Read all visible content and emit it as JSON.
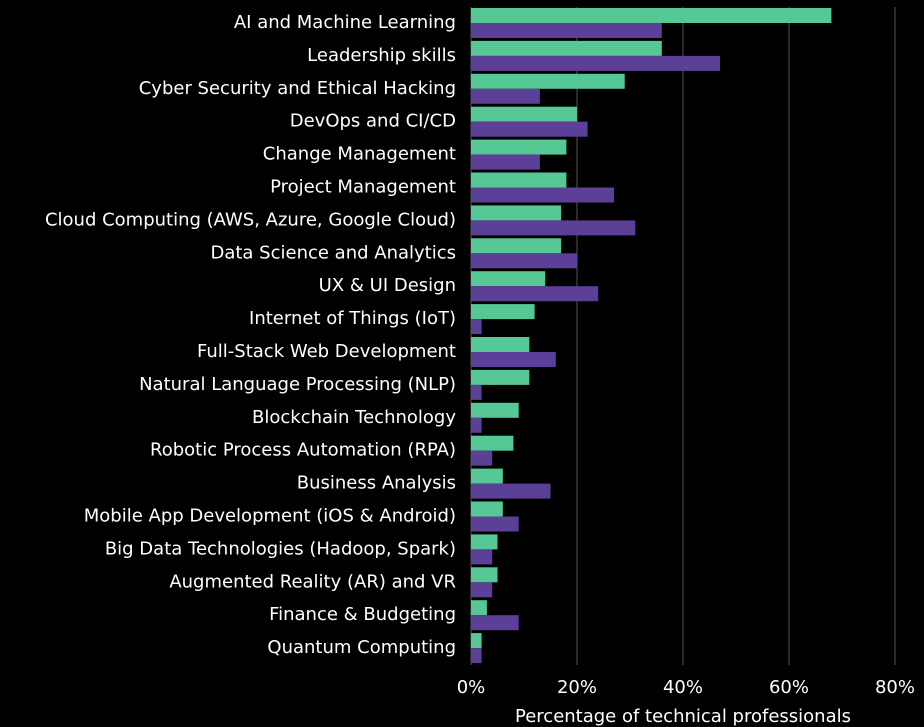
{
  "chart_data": {
    "type": "hbar",
    "x_label": "Percentage of technical professionals",
    "categories": [
      "AI and Machine Learning",
      "Leadership skills",
      "Cyber Security and Ethical Hacking",
      "DevOps and CI/CD",
      "Change Management",
      "Project Management",
      "Cloud Computing (AWS, Azure, Google Cloud)",
      "Data Science and Analytics",
      "UX & UI Design",
      "Internet of Things (IoT)",
      "Full-Stack Web Development",
      "Natural Language Processing (NLP)",
      "Blockchain Technology",
      "Robotic Process Automation (RPA)",
      "Business Analysis",
      "Mobile App Development (iOS & Android)",
      "Big Data Technologies (Hadoop, Spark)",
      "Augmented Reality (AR) and VR",
      "Finance & Budgeting",
      "Quantum Computing"
    ],
    "series": [
      {
        "color": "#55c896",
        "values": [
          68,
          36,
          29,
          20,
          18,
          18,
          17,
          17,
          14,
          12,
          11,
          11,
          9,
          8,
          6,
          6,
          5,
          5,
          3,
          2
        ]
      },
      {
        "color": "#5c3f96",
        "values": [
          36,
          47,
          13,
          22,
          13,
          27,
          31,
          20,
          24,
          2,
          16,
          2,
          2,
          4,
          15,
          9,
          4,
          4,
          9,
          2
        ]
      }
    ],
    "xlim": [
      0,
      80
    ],
    "xticks": [
      {
        "value": 0,
        "label": "0%"
      },
      {
        "value": 20,
        "label": "20%"
      },
      {
        "value": 40,
        "label": "40%"
      },
      {
        "value": 60,
        "label": "60%"
      },
      {
        "value": 80,
        "label": "80%"
      }
    ],
    "grid": true
  }
}
